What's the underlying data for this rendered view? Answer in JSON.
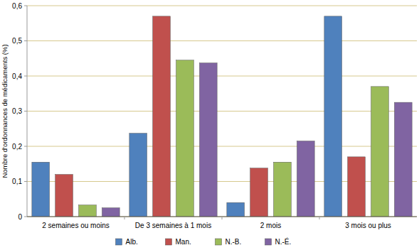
{
  "chart_data": {
    "type": "bar",
    "ylabel": "Nombre d'ordonnances de médicaments (%)",
    "categories": [
      "2 semaines ou moins",
      "De 3 semaines à 1 mois",
      "2 mois",
      "3 mois ou plus"
    ],
    "series": [
      {
        "name": "Alb.",
        "color": "#4f81bd",
        "values": [
          0.155,
          0.237,
          0.04,
          0.57
        ]
      },
      {
        "name": "Man.",
        "color": "#c0504d",
        "values": [
          0.12,
          0.57,
          0.138,
          0.17
        ]
      },
      {
        "name": "N.-B.",
        "color": "#9bbb59",
        "values": [
          0.033,
          0.445,
          0.155,
          0.37
        ]
      },
      {
        "name": "N.-É.",
        "color": "#8064a2",
        "values": [
          0.025,
          0.437,
          0.215,
          0.325
        ]
      }
    ],
    "ylim": [
      0,
      0.6
    ],
    "yticks": [
      0,
      {
        "value": 0.1,
        "label": "0,1"
      },
      {
        "value": 0.2,
        "label": "0,2"
      },
      {
        "value": 0.3,
        "label": "0,3"
      },
      {
        "value": 0.4,
        "label": "0,4"
      },
      {
        "value": 0.5,
        "label": "0,5"
      },
      {
        "value": 0.6,
        "label": "0,6"
      }
    ],
    "grid": true,
    "legend": "bottom"
  }
}
